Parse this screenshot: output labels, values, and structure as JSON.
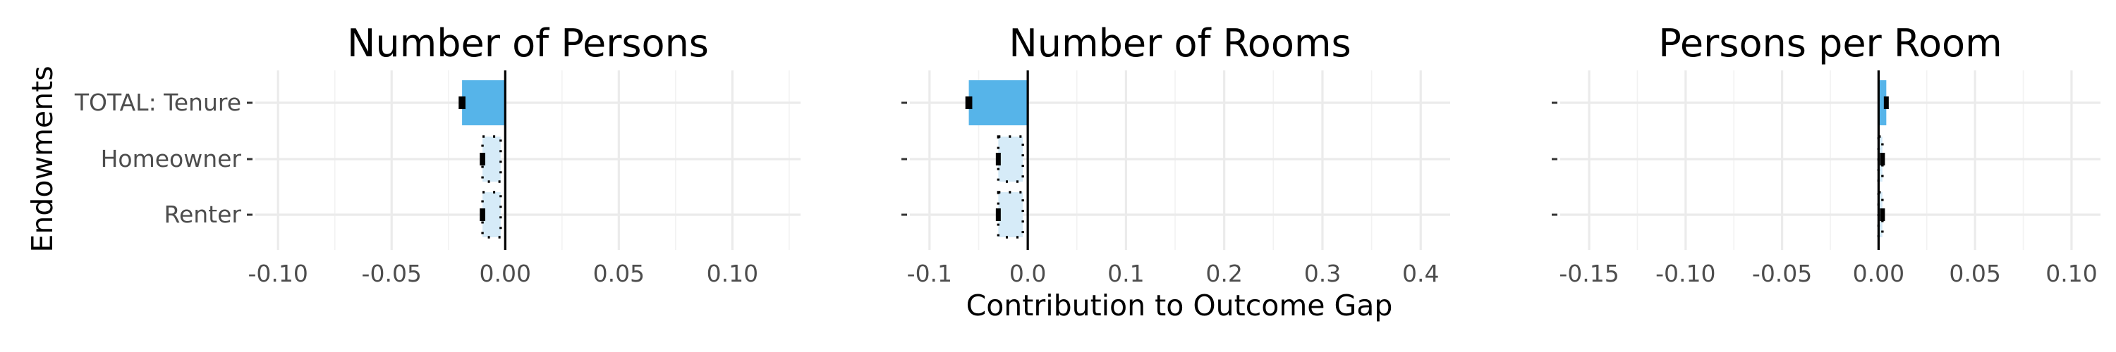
{
  "chart_data": {
    "type": "bar",
    "orientation": "horizontal",
    "ylabel": "Endowments",
    "xlabel": "Contribution to Outcome Gap",
    "categories": [
      "TOTAL: Tenure",
      "Homeowner",
      "Renter"
    ],
    "colors": {
      "total": "#56b4e9",
      "component": "#d6ebf8",
      "error_bar": "#000000",
      "zero_line": "#000000"
    },
    "panels": [
      {
        "title": "Number of Persons",
        "xlim": [
          -0.11,
          0.13
        ],
        "xticks": [
          -0.1,
          -0.05,
          0.0,
          0.05,
          0.1
        ],
        "xtick_labels": [
          "-0.10",
          "-0.05",
          "0.00",
          "0.05",
          "0.10"
        ],
        "values": [
          -0.019,
          -0.01,
          -0.01
        ],
        "component_extent": [
          -0.002,
          -0.002
        ],
        "ci": [
          [
            -0.0205,
            -0.0175
          ],
          [
            -0.0112,
            -0.0088
          ],
          [
            -0.0112,
            -0.0088
          ]
        ]
      },
      {
        "title": "Number of Rooms",
        "xlim": [
          -0.12,
          0.43
        ],
        "xticks": [
          -0.1,
          0.0,
          0.1,
          0.2,
          0.3,
          0.4
        ],
        "xtick_labels": [
          "-0.1",
          "0.0",
          "0.1",
          "0.2",
          "0.3",
          "0.4"
        ],
        "values": [
          -0.06,
          -0.03,
          -0.03
        ],
        "component_extent": [
          -0.005,
          -0.005
        ],
        "ci": [
          [
            -0.0635,
            -0.0565
          ],
          [
            -0.0325,
            -0.0275
          ],
          [
            -0.0325,
            -0.0275
          ]
        ]
      },
      {
        "title": "Persons per Room",
        "xlim": [
          -0.165,
          0.115
        ],
        "xticks": [
          -0.15,
          -0.1,
          -0.05,
          0.0,
          0.05,
          0.1
        ],
        "xtick_labels": [
          "-0.15",
          "-0.10",
          "-0.05",
          "0.00",
          "0.05",
          "0.10"
        ],
        "values": [
          0.004,
          0.002,
          0.002
        ],
        "component_extent": [
          0.0,
          0.0
        ],
        "ci": [
          [
            0.0035,
            0.0045
          ],
          [
            0.0015,
            0.0025
          ],
          [
            0.0015,
            0.0025
          ]
        ]
      }
    ]
  }
}
